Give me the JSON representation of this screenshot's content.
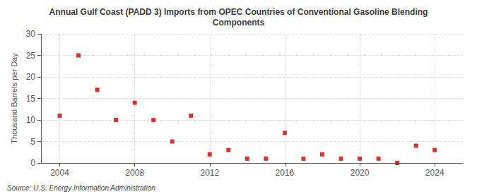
{
  "chart_data": {
    "type": "scatter",
    "title": "Annual Gulf Coast (PADD 3) Imports from OPEC Countries of Conventional Gasoline Blending\nComponents",
    "ylabel": "Thousand Barrels per Day",
    "annotations": [
      "Source: U.S. Energy Information Administration"
    ],
    "x": [
      2004,
      2005,
      2006,
      2007,
      2008,
      2009,
      2010,
      2011,
      2012,
      2013,
      2014,
      2015,
      2016,
      2017,
      2018,
      2019,
      2020,
      2021,
      2022,
      2023,
      2024
    ],
    "values": [
      11,
      25,
      17,
      10,
      14,
      10,
      5,
      11,
      2,
      3,
      1,
      1,
      7,
      1,
      2,
      1,
      1,
      1,
      0,
      4,
      3
    ],
    "color": "#cc0000",
    "marker": "square",
    "xlim": [
      2003.0,
      2025.5
    ],
    "xticks": [
      2004,
      2008,
      2012,
      2016,
      2020,
      2024
    ],
    "ylim": [
      0,
      30
    ],
    "yticks": [
      0,
      5,
      10,
      15,
      20,
      25,
      30
    ],
    "grid": true
  }
}
